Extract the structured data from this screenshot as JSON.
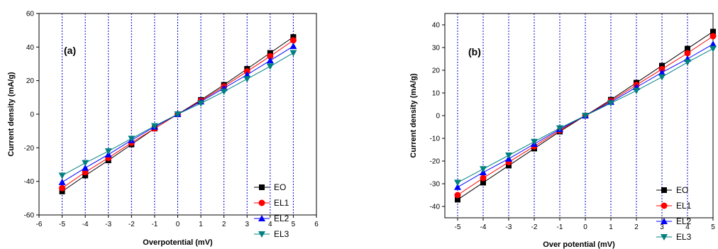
{
  "chart_data": [
    {
      "type": "line",
      "panel_label": "(a)",
      "xlabel": "Overpotential (mV)",
      "ylabel": "Current density (mA/g)",
      "xlim": [
        -6,
        6
      ],
      "ylim": [
        -60,
        60
      ],
      "x_ticks": [
        -6,
        -5,
        -4,
        -3,
        -2,
        -1,
        0,
        1,
        2,
        3,
        4,
        5,
        6
      ],
      "y_ticks": [
        -60,
        -40,
        -20,
        0,
        20,
        40,
        60
      ],
      "grid": "vertical dashed blue lines at integer x",
      "legend_position": "bottom-right",
      "x": [
        -5,
        -4,
        -3,
        -2,
        -1,
        0,
        1,
        2,
        3,
        4,
        5
      ],
      "series": [
        {
          "name": "EO",
          "color": "#000000",
          "marker": "square",
          "values": [
            -46,
            -36.5,
            -27.5,
            -18,
            -8.5,
            0,
            8.5,
            17.5,
            27,
            36.5,
            46
          ]
        },
        {
          "name": "EL1",
          "color": "#ff0000",
          "marker": "circle",
          "values": [
            -44,
            -34.5,
            -26,
            -17,
            -8.5,
            0,
            8,
            16.5,
            25.5,
            34.5,
            44
          ]
        },
        {
          "name": "EL2",
          "color": "#0000ff",
          "marker": "triangle-up",
          "values": [
            -40.5,
            -32,
            -24,
            -15.5,
            -7.5,
            0,
            7.5,
            15.5,
            23.5,
            32,
            40.5
          ]
        },
        {
          "name": "EL3",
          "color": "#008080",
          "marker": "triangle-down",
          "values": [
            -36.5,
            -29,
            -22,
            -14.5,
            -7,
            0,
            6.5,
            13.5,
            21,
            28.5,
            36.5
          ]
        }
      ]
    },
    {
      "type": "line",
      "panel_label": "(b)",
      "xlabel": "Over potential (mV)",
      "ylabel": "Current density (mA/g)",
      "xlim": [
        -5.5,
        5
      ],
      "ylim": [
        -45,
        45
      ],
      "x_ticks": [
        -5,
        -4,
        -3,
        -2,
        -1,
        0,
        1,
        2,
        3,
        4,
        5
      ],
      "y_ticks": [
        -40,
        -30,
        -20,
        -10,
        0,
        10,
        20,
        30,
        40
      ],
      "grid": "vertical dashed blue lines at integer x",
      "legend_position": "bottom-right",
      "x": [
        -5,
        -4,
        -3,
        -2,
        -1,
        0,
        1,
        2,
        3,
        4,
        5
      ],
      "series": [
        {
          "name": "EO",
          "color": "#000000",
          "marker": "square",
          "values": [
            -37,
            -29.5,
            -22,
            -14.5,
            -7,
            0,
            7,
            14.5,
            22,
            29.5,
            37
          ]
        },
        {
          "name": "EL1",
          "color": "#ff0000",
          "marker": "circle",
          "values": [
            -35,
            -27.5,
            -20.5,
            -13.5,
            -6.5,
            0,
            6.5,
            13.5,
            20.5,
            27.5,
            35
          ]
        },
        {
          "name": "EL2",
          "color": "#0000ff",
          "marker": "triangle-up",
          "values": [
            -31.5,
            -25,
            -19,
            -12.5,
            -6,
            0,
            6,
            12.5,
            19,
            25,
            31.5
          ]
        },
        {
          "name": "EL3",
          "color": "#008080",
          "marker": "triangle-down",
          "values": [
            -29.5,
            -23.5,
            -17.5,
            -11.5,
            -5.5,
            0,
            5.5,
            11,
            17,
            23.5,
            29.5
          ]
        }
      ]
    }
  ]
}
